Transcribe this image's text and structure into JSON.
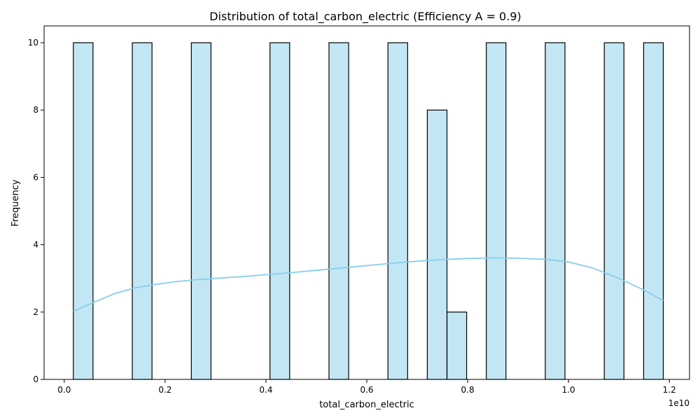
{
  "chart_data": {
    "type": "bar",
    "title": "Distribution of total_carbon_electric (Efficiency A = 0.9)",
    "xlabel": "total_carbon_electric",
    "ylabel": "Frequency",
    "x_scale_label": "1e10",
    "xlim": [
      -0.04,
      1.24
    ],
    "ylim": [
      0,
      10.5
    ],
    "xticks": [
      {
        "value": 0.0,
        "label": "0.0"
      },
      {
        "value": 0.2,
        "label": "0.2"
      },
      {
        "value": 0.4,
        "label": "0.4"
      },
      {
        "value": 0.6,
        "label": "0.6"
      },
      {
        "value": 0.8,
        "label": "0.8"
      },
      {
        "value": 1.0,
        "label": "1.0"
      },
      {
        "value": 1.2,
        "label": "1.2"
      }
    ],
    "yticks": [
      {
        "value": 0,
        "label": "0"
      },
      {
        "value": 2,
        "label": "2"
      },
      {
        "value": 4,
        "label": "4"
      },
      {
        "value": 6,
        "label": "6"
      },
      {
        "value": 8,
        "label": "8"
      },
      {
        "value": 10,
        "label": "10"
      }
    ],
    "bins": [
      {
        "x0": 0.018,
        "x1": 0.057,
        "count": 10
      },
      {
        "x0": 0.135,
        "x1": 0.174,
        "count": 10
      },
      {
        "x0": 0.252,
        "x1": 0.291,
        "count": 10
      },
      {
        "x0": 0.408,
        "x1": 0.447,
        "count": 10
      },
      {
        "x0": 0.525,
        "x1": 0.564,
        "count": 10
      },
      {
        "x0": 0.642,
        "x1": 0.681,
        "count": 10
      },
      {
        "x0": 0.72,
        "x1": 0.759,
        "count": 8
      },
      {
        "x0": 0.759,
        "x1": 0.798,
        "count": 2
      },
      {
        "x0": 0.837,
        "x1": 0.876,
        "count": 10
      },
      {
        "x0": 0.954,
        "x1": 0.993,
        "count": 10
      },
      {
        "x0": 1.071,
        "x1": 1.11,
        "count": 10
      },
      {
        "x0": 1.149,
        "x1": 1.188,
        "count": 10
      }
    ],
    "kde": {
      "x": [
        0.018,
        0.06,
        0.1,
        0.14,
        0.18,
        0.22,
        0.26,
        0.3,
        0.35,
        0.4,
        0.45,
        0.5,
        0.55,
        0.6,
        0.65,
        0.7,
        0.75,
        0.8,
        0.85,
        0.9,
        0.95,
        1.0,
        1.05,
        1.1,
        1.15,
        1.188
      ],
      "y": [
        2.02,
        2.3,
        2.55,
        2.72,
        2.82,
        2.9,
        2.96,
        3.0,
        3.05,
        3.11,
        3.17,
        3.24,
        3.31,
        3.38,
        3.45,
        3.51,
        3.56,
        3.59,
        3.61,
        3.6,
        3.57,
        3.49,
        3.3,
        3.0,
        2.65,
        2.34
      ]
    },
    "colors": {
      "bar": "#87ceeb",
      "edge": "#000000",
      "kde": "#87ceeb"
    },
    "grid": false
  }
}
